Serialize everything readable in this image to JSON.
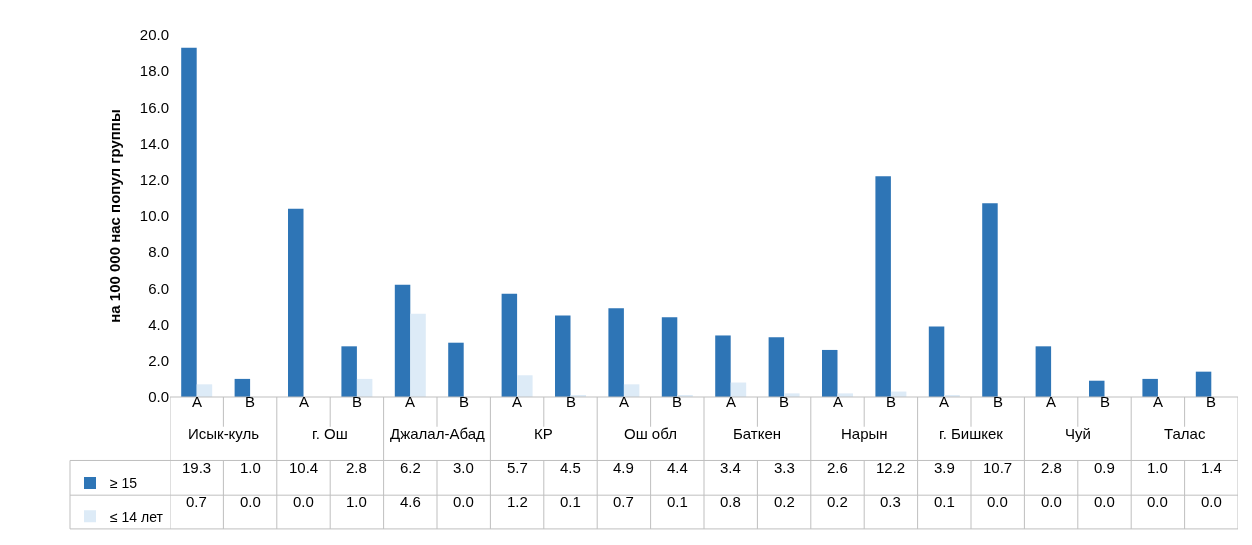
{
  "chart_data": {
    "type": "bar",
    "ylabel": "на 100 000 нас попул группы",
    "categories": [
      "A",
      "B",
      "A",
      "B",
      "A",
      "B",
      "A",
      "B",
      "A",
      "B",
      "A",
      "B",
      "A",
      "B",
      "A",
      "B",
      "A",
      "B",
      "A",
      "B"
    ],
    "annotations": [
      "Исык-куль",
      "г. Ош",
      "Джалал-Абад",
      "КР",
      "Ош обл",
      "Баткен",
      "Нарын",
      "г. Бишкек",
      "Чуй",
      "Талас"
    ],
    "series": [
      {
        "name": "≥ 15",
        "color": "#2e75b6",
        "values": [
          19.3,
          1.0,
          10.4,
          2.8,
          6.2,
          3.0,
          5.7,
          4.5,
          4.9,
          4.4,
          3.4,
          3.3,
          2.6,
          12.2,
          3.9,
          10.7,
          2.8,
          0.9,
          1.0,
          1.4
        ],
        "value_labels": [
          "19.3",
          "1.0",
          "10.4",
          "2.8",
          "6.2",
          "3.0",
          "5.7",
          "4.5",
          "4.9",
          "4.4",
          "3.4",
          "3.3",
          "2.6",
          "12.2",
          "3.9",
          "10.7",
          "2.8",
          "0.9",
          "1.0",
          "1.4"
        ]
      },
      {
        "name": "≤ 14 лет",
        "color": "#ddebf7",
        "values": [
          0.7,
          0.0,
          0.0,
          1.0,
          4.6,
          0.0,
          1.2,
          0.1,
          0.7,
          0.1,
          0.8,
          0.2,
          0.2,
          0.3,
          0.1,
          0.0,
          0.0,
          0.0,
          0.0,
          0.0
        ],
        "value_labels": [
          "0.7",
          "0.0",
          "0.0",
          "1.0",
          "4.6",
          "0.0",
          "1.2",
          "0.1",
          "0.7",
          "0.1",
          "0.8",
          "0.2",
          "0.2",
          "0.3",
          "0.1",
          "0.0",
          "0.0",
          "0.0",
          "0.0",
          "0.0"
        ]
      }
    ],
    "ylim": [
      0,
      20
    ],
    "yticks": [
      {
        "value": 0,
        "label": "0.0"
      },
      {
        "value": 2,
        "label": "2.0"
      },
      {
        "value": 4,
        "label": "4.0"
      },
      {
        "value": 6,
        "label": "6.0"
      },
      {
        "value": 8,
        "label": "8.0"
      },
      {
        "value": 10,
        "label": "10.0"
      },
      {
        "value": 12,
        "label": "12.0"
      },
      {
        "value": 14,
        "label": "14.0"
      },
      {
        "value": 16,
        "label": "16.0"
      },
      {
        "value": 18,
        "label": "18.0"
      },
      {
        "value": 20,
        "label": "20.0"
      }
    ],
    "legend": "bottom left"
  }
}
